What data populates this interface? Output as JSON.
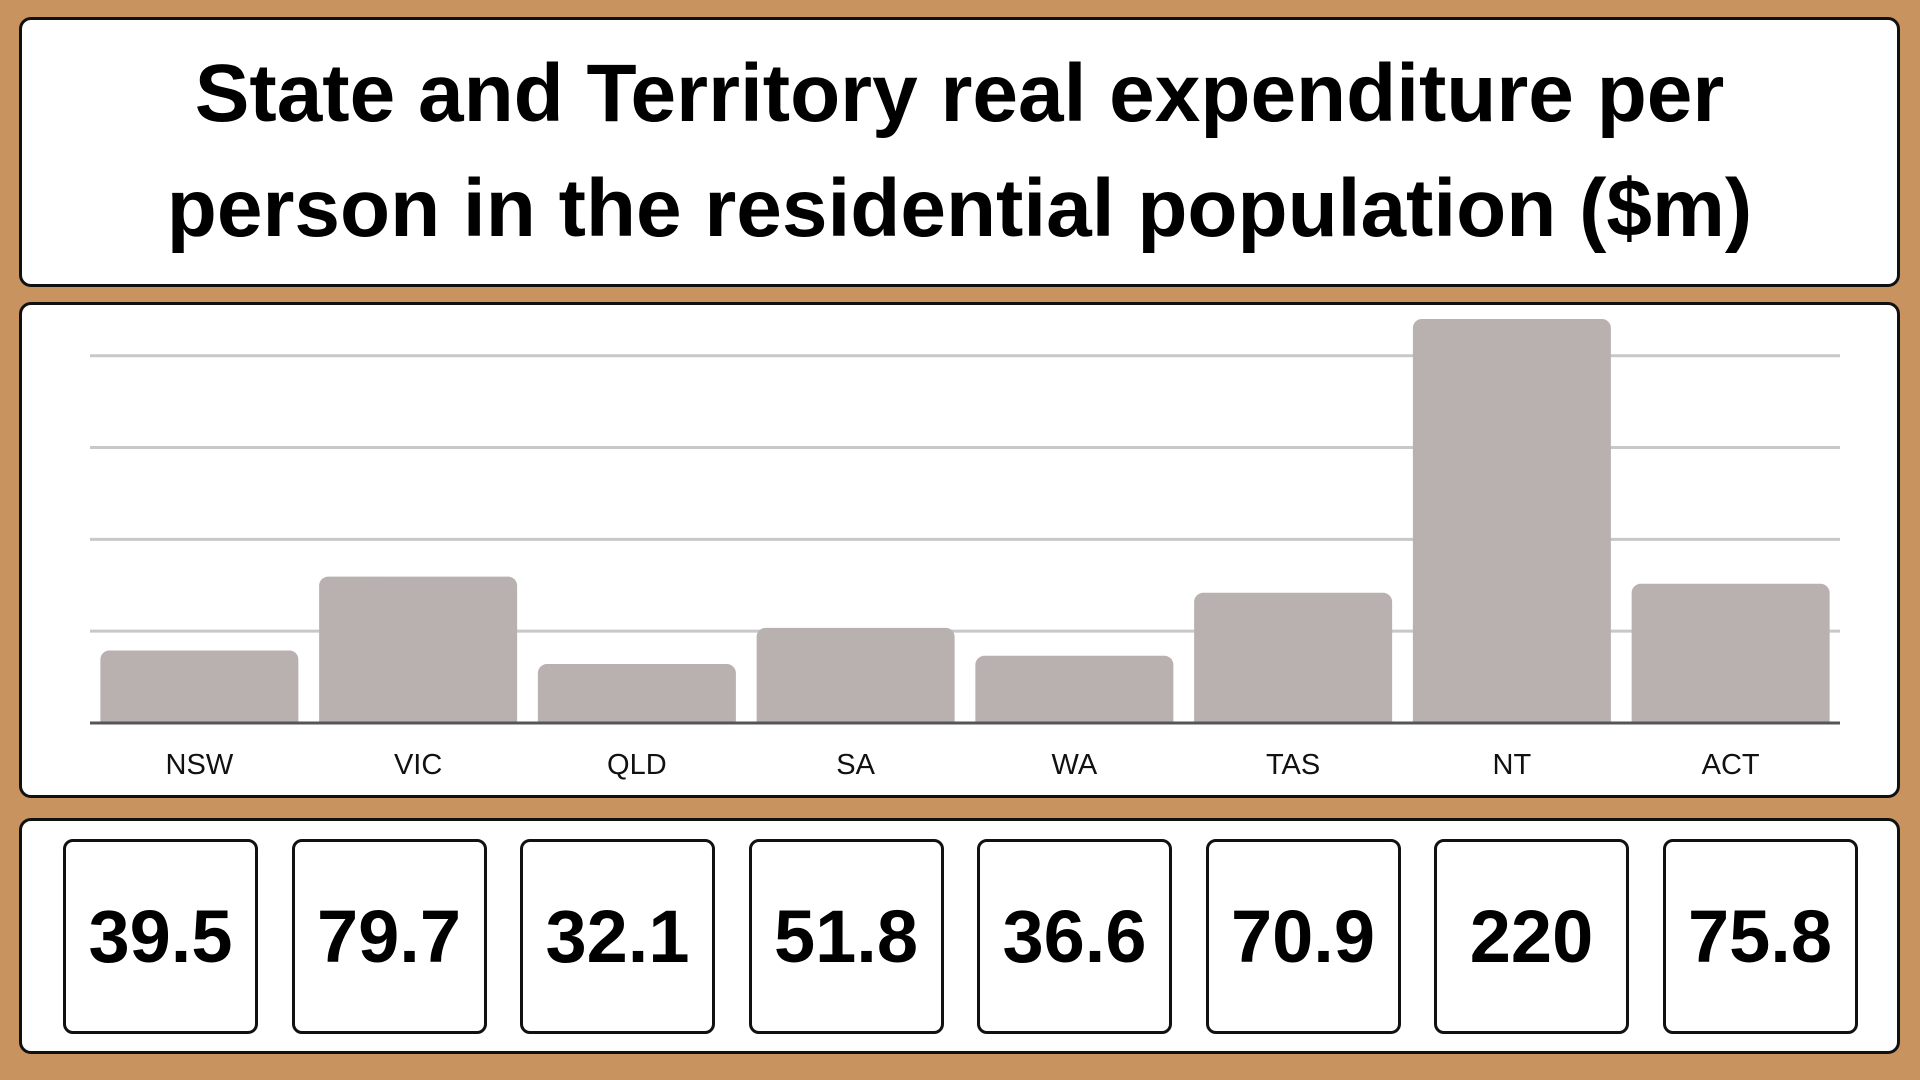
{
  "colors": {
    "background": "#c8935f",
    "bar": "#b8b1b0",
    "gridline": "#c8c8c8",
    "axis": "#555555"
  },
  "chart_data": {
    "type": "bar",
    "title": "State and Territory real expenditure per person in the residential population ($m)",
    "categories": [
      "NSW",
      "VIC",
      "QLD",
      "SA",
      "WA",
      "TAS",
      "NT",
      "ACT"
    ],
    "values": [
      39.5,
      79.7,
      32.1,
      51.8,
      36.6,
      70.9,
      220,
      75.8
    ],
    "value_labels": [
      "39.5",
      "79.7",
      "32.1",
      "51.8",
      "36.6",
      "70.9",
      "220",
      "75.8"
    ],
    "xlabel": "",
    "ylabel": "",
    "ylim": [
      0,
      220
    ],
    "gridlines": [
      50,
      100,
      150,
      200
    ],
    "grid": true,
    "y_tick_labels_shown": false
  }
}
